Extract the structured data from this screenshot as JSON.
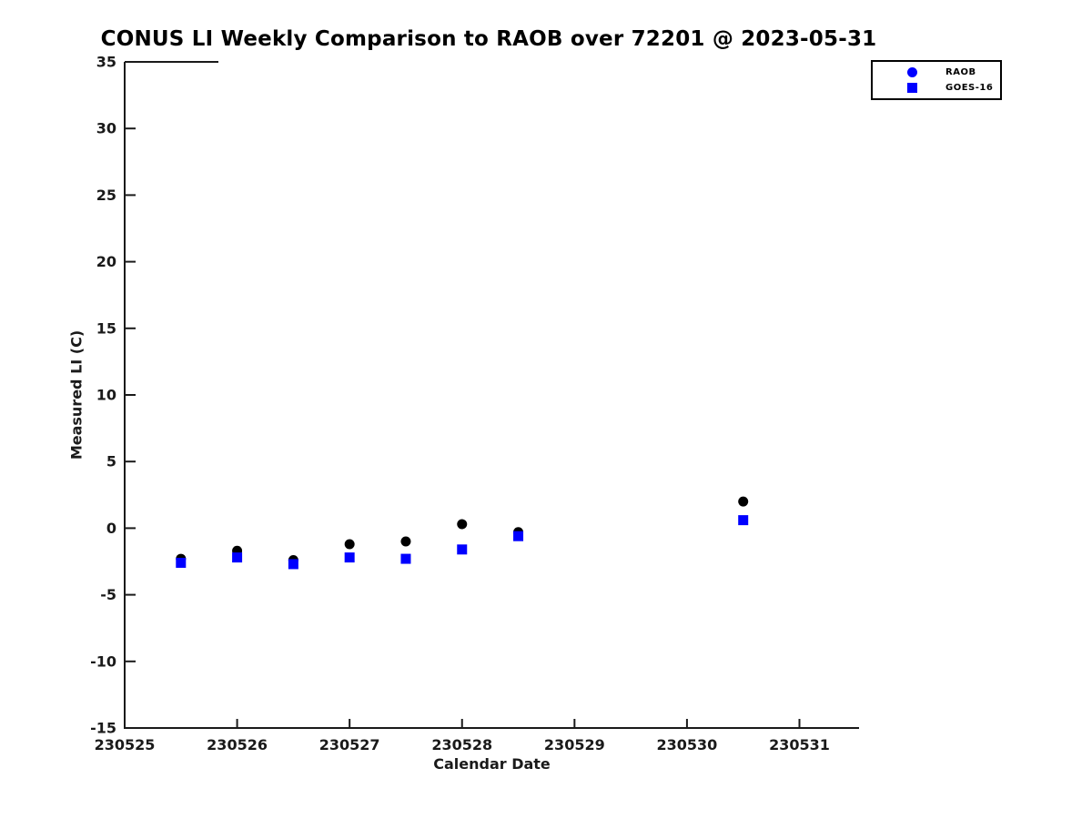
{
  "page": {
    "background": "#ffffff"
  },
  "chart_data": {
    "type": "scatter",
    "title": "CONUS LI Weekly Comparison to RAOB over 72201 @ 2023-05-31",
    "xlabel": "Calendar Date",
    "ylabel": "Measured LI (C)",
    "x": [
      230525.5,
      230526.0,
      230526.5,
      230527.0,
      230527.5,
      230528.0,
      230528.5,
      230530.5
    ],
    "series": [
      {
        "name": "RAOB",
        "marker": "circle",
        "plot_color": "#000000",
        "legend_color": "#0000ff",
        "values": [
          -2.3,
          -1.7,
          -2.4,
          -1.2,
          -1.0,
          0.3,
          -0.3,
          2.0
        ]
      },
      {
        "name": "GOES-16",
        "marker": "square",
        "plot_color": "#0000ff",
        "legend_color": "#0000ff",
        "values": [
          -2.6,
          -2.2,
          -2.7,
          -2.2,
          -2.3,
          -1.6,
          -0.6,
          0.6
        ]
      }
    ],
    "xlim": [
      230525,
      230531.53
    ],
    "ylim": [
      -15,
      35
    ],
    "xticks": [
      230525,
      230526,
      230527,
      230528,
      230529,
      230530,
      230531
    ],
    "yticks": [
      35,
      30,
      25,
      20,
      15,
      10,
      5,
      0,
      -5,
      -10,
      -15
    ],
    "grid": false,
    "legend_position": "top-right",
    "axis_color": "#1a1a1a",
    "tick_label_color": "#1a1a1a"
  }
}
